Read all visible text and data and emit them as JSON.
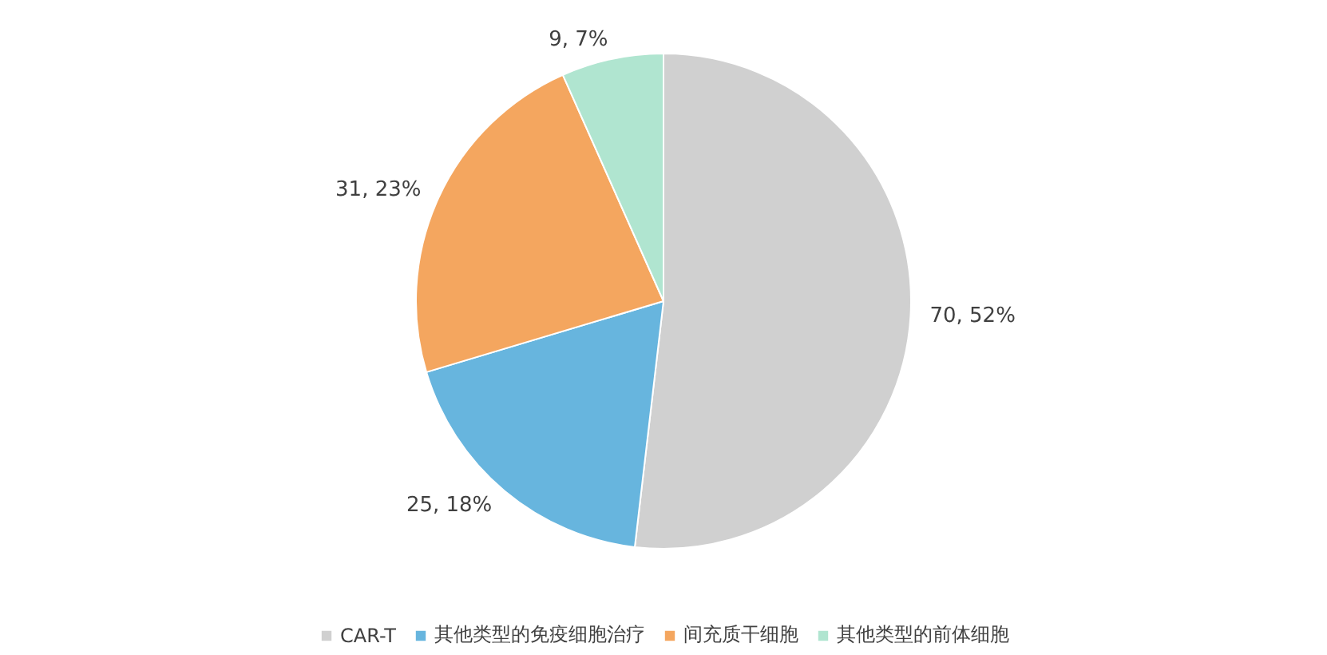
{
  "chart_data": {
    "type": "pie",
    "categories": [
      "CAR-T",
      "其他类型的免疫细胞治疗",
      "间充质干细胞",
      "其他类型的前体细胞"
    ],
    "values": [
      70,
      25,
      31,
      9
    ],
    "colors": [
      "#d0d0d0",
      "#67b5de",
      "#f4a65f",
      "#b0e5d0"
    ],
    "value_labels": [
      "70, 52%",
      "25, 18%",
      "31, 23%",
      "9, 7%"
    ],
    "legend": "bottom"
  }
}
